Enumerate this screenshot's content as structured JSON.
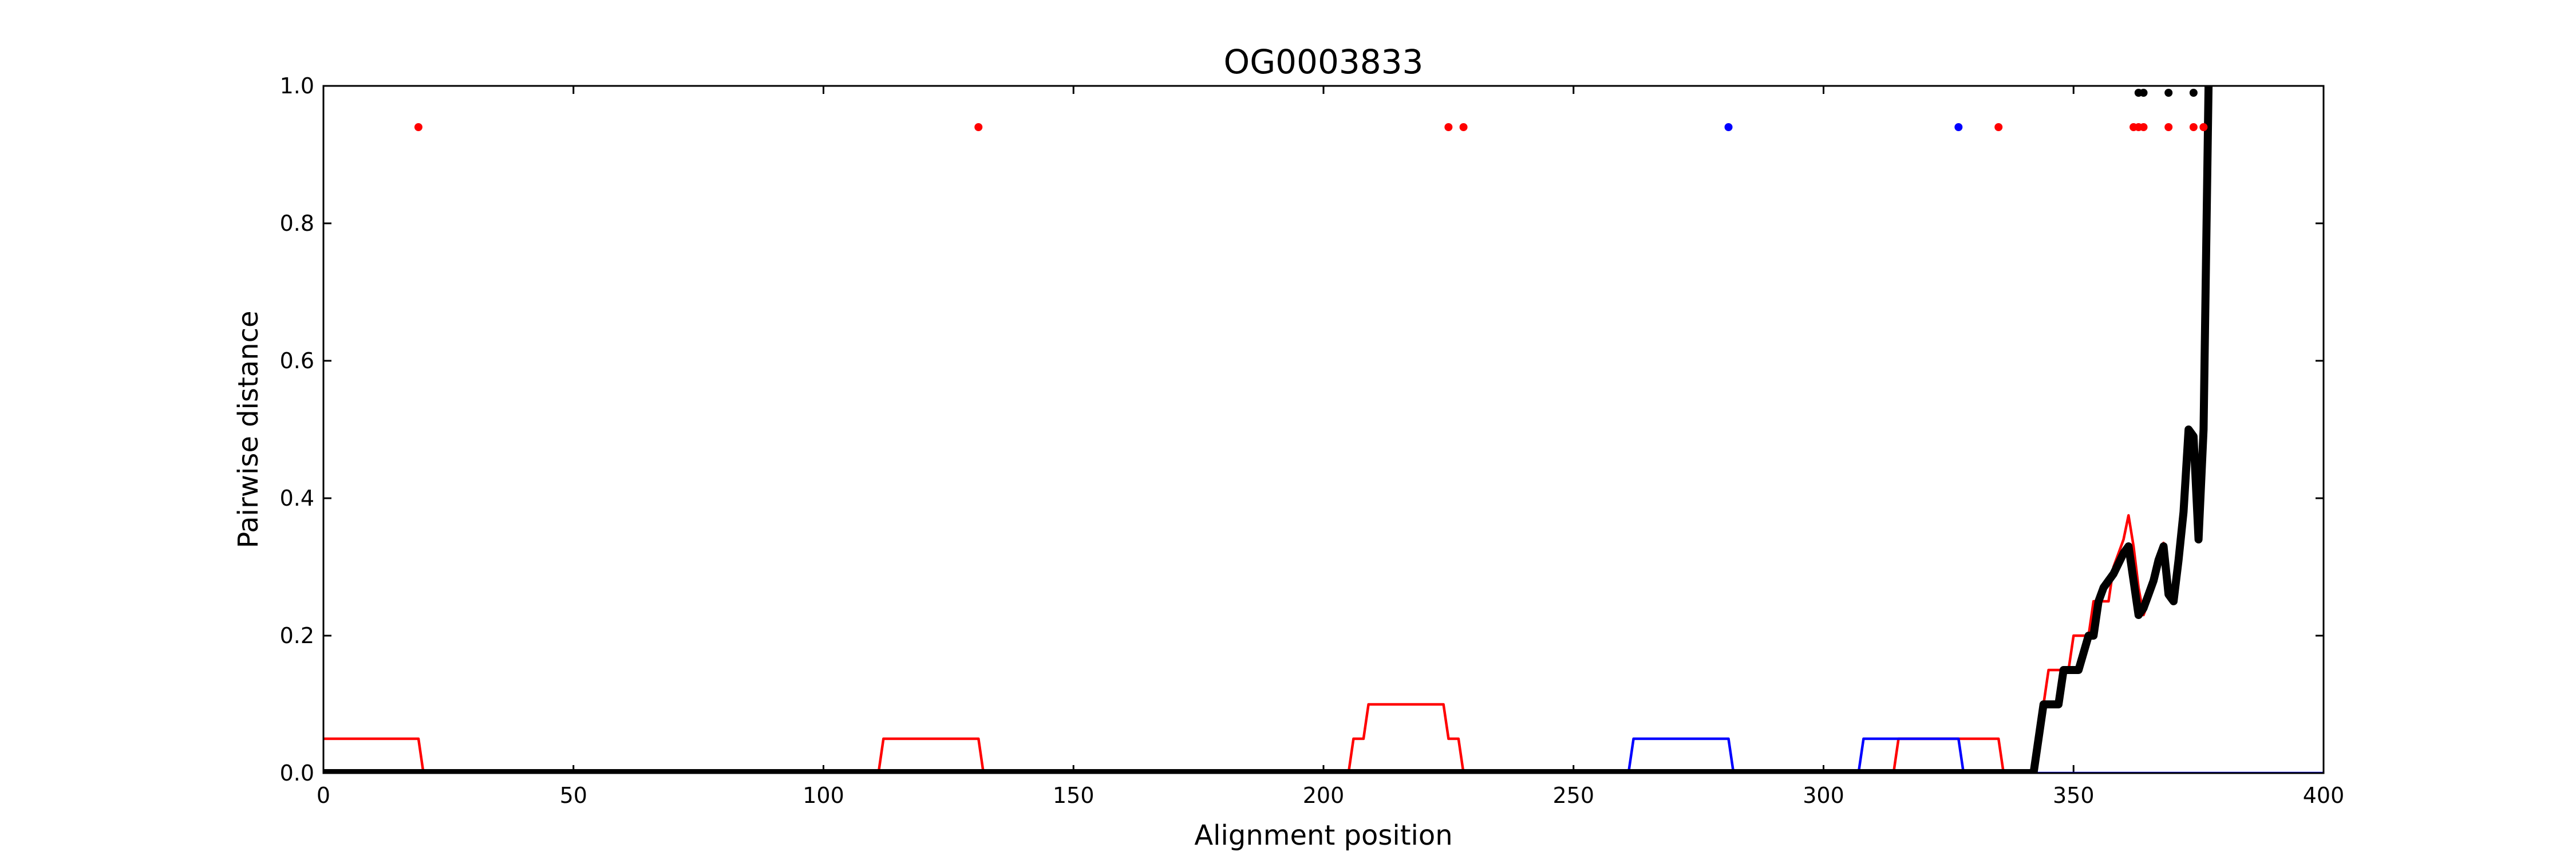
{
  "chart_data": {
    "type": "line",
    "title": "OG0003833",
    "xlabel": "Alignment position",
    "ylabel": "Pairwise distance",
    "xlim": [
      0,
      400
    ],
    "ylim": [
      0,
      1.0
    ],
    "xticks": [
      0,
      50,
      100,
      150,
      200,
      250,
      300,
      350,
      400
    ],
    "xtick_labels": [
      "0",
      "50",
      "100",
      "150",
      "200",
      "250",
      "300",
      "350",
      "400"
    ],
    "yticks": [
      0,
      0.2,
      0.4,
      0.6,
      0.8,
      1.0
    ],
    "ytick_labels": [
      "0.0",
      "0.2",
      "0.4",
      "0.6",
      "0.8",
      "1.0"
    ],
    "grid": false,
    "colors": {
      "red": "#ff0000",
      "blue": "#0000ff",
      "black": "#000000"
    },
    "series": [
      {
        "color": "#ff0000",
        "width": "thin",
        "x": [
          0,
          19,
          20,
          111,
          112,
          131,
          132,
          205,
          206,
          207,
          208,
          209,
          224,
          225,
          227,
          228,
          314,
          315,
          335,
          336,
          342,
          343,
          345,
          346,
          349,
          350,
          353,
          354,
          356,
          357,
          358,
          359,
          360,
          361,
          362,
          363,
          364,
          365,
          366,
          367,
          368,
          369,
          370,
          371,
          372,
          373,
          374,
          375,
          376,
          377
        ],
        "y": [
          0.05,
          0.05,
          0,
          0,
          0.05,
          0.05,
          0,
          0,
          0.05,
          0.05,
          0.05,
          0.1,
          0.1,
          0.05,
          0.05,
          0,
          0,
          0.05,
          0.05,
          0,
          0,
          0.05,
          0.15,
          0.15,
          0.15,
          0.2,
          0.2,
          0.25,
          0.25,
          0.25,
          0.3,
          0.32,
          0.34,
          0.375,
          0.33,
          0.27,
          0.23,
          0.25,
          0.28,
          0.31,
          0.335,
          0.27,
          0.25,
          0.31,
          0.39,
          0.5,
          0.45,
          0.36,
          0.5,
          1.0
        ]
      },
      {
        "color": "#0000ff",
        "width": "thin",
        "x": [
          0,
          261,
          262,
          281,
          282,
          307,
          308,
          327,
          328,
          400
        ],
        "y": [
          0,
          0,
          0.05,
          0.05,
          0,
          0,
          0.05,
          0.05,
          0,
          0
        ]
      },
      {
        "color": "#000000",
        "width": "thick",
        "x": [
          0,
          342,
          344,
          345,
          347,
          348,
          350,
          351,
          353,
          354,
          355,
          356,
          357,
          358,
          360,
          361,
          362,
          363,
          364,
          365,
          366,
          367,
          368,
          369,
          370,
          371,
          372,
          373,
          374,
          375,
          376,
          377
        ],
        "y": [
          0,
          0,
          0.1,
          0.1,
          0.1,
          0.15,
          0.15,
          0.15,
          0.2,
          0.2,
          0.25,
          0.27,
          0.28,
          0.29,
          0.32,
          0.33,
          0.28,
          0.23,
          0.24,
          0.26,
          0.28,
          0.31,
          0.33,
          0.26,
          0.25,
          0.31,
          0.38,
          0.5,
          0.49,
          0.34,
          0.5,
          1.0
        ]
      }
    ],
    "markers": [
      {
        "color": "#ff0000",
        "y": 0.94,
        "x": [
          19,
          131,
          225,
          228,
          335,
          362,
          363,
          364,
          369,
          374,
          376
        ]
      },
      {
        "color": "#0000ff",
        "y": 0.94,
        "x": [
          281,
          327
        ]
      },
      {
        "color": "#000000",
        "y": 0.99,
        "x": [
          363,
          364,
          369,
          374
        ]
      }
    ]
  }
}
